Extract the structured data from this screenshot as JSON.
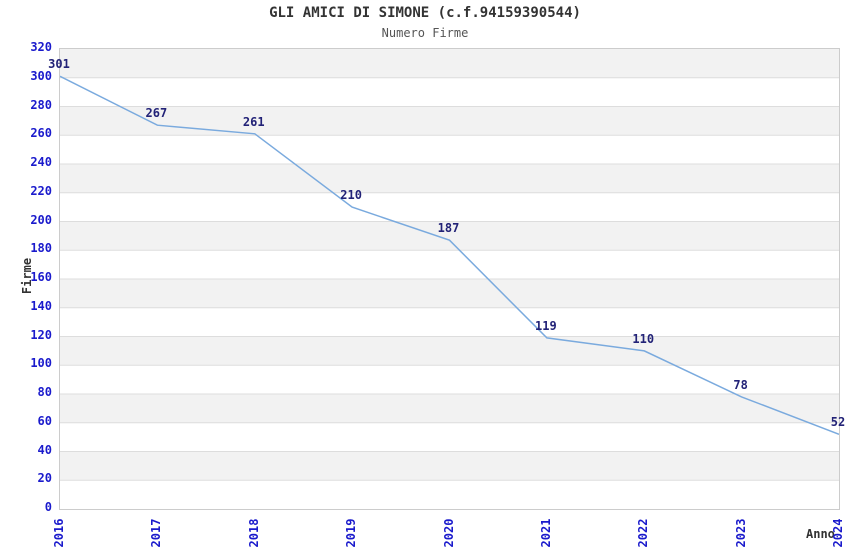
{
  "header": {
    "title": "GLI AMICI DI SIMONE (c.f.94159390544)",
    "subtitle": "Numero Firme"
  },
  "chart_data": {
    "type": "line",
    "title": "GLI AMICI DI SIMONE (c.f.94159390544)",
    "subtitle": "Numero Firme",
    "categories": [
      "2016",
      "2017",
      "2018",
      "2019",
      "2020",
      "2021",
      "2022",
      "2023",
      "2024"
    ],
    "values": [
      301,
      267,
      261,
      210,
      187,
      119,
      110,
      78,
      52
    ],
    "xlabel": "Anno",
    "ylabel": "Firme",
    "ylim": [
      0,
      320
    ],
    "ytick_step": 20,
    "grid": true,
    "legend": "none",
    "point_labels_visible": true,
    "colors": {
      "line": "#7aaade",
      "tick_label": "#1a1acc",
      "point_label": "#222277",
      "band_alt": "#f2f2f2",
      "band_main": "#ffffff",
      "gridline": "#dddddd",
      "plot_border": "#cccccc",
      "title": "#333333",
      "subtitle": "#555555",
      "axis_title": "#333333"
    }
  }
}
